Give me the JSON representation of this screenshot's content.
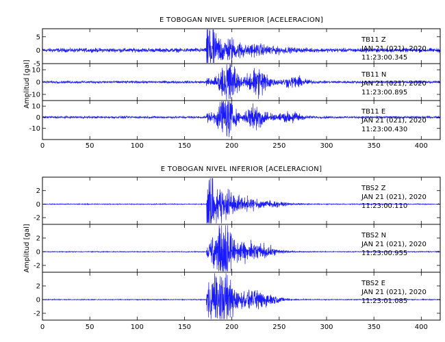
{
  "chart_data": [
    {
      "type": "line",
      "title": "E TOBOGAN NIVEL SUPERIOR [ACELERACION]",
      "xlabel": "",
      "ylabel": "Amplitud [gal]",
      "xlim": [
        0,
        420
      ],
      "x_ticks": [
        0,
        50,
        100,
        150,
        200,
        250,
        300,
        350,
        400
      ],
      "grid": false,
      "series": [
        {
          "annotation": [
            "TB11   Z",
            "JAN 21 (021), 2020",
            "11:23:00.345"
          ],
          "color": "#1a1aff",
          "ylim": [
            -5,
            8
          ],
          "y_ticks": [
            -5,
            0,
            5
          ],
          "onset": 173,
          "noise": 0.6,
          "packets": [
            {
              "center": 176,
              "amp": 7.0,
              "width": 6
            },
            {
              "center": 190,
              "amp": 2.5,
              "width": 18
            },
            {
              "center": 220,
              "amp": 1.2,
              "width": 35
            }
          ]
        },
        {
          "annotation": [
            "TB11   N",
            "JAN 21 (021), 2020",
            "11:23:00.895"
          ],
          "color": "#1a1aff",
          "ylim": [
            -15,
            15
          ],
          "y_ticks": [
            -10,
            0,
            10
          ],
          "onset": 173,
          "noise": 0.8,
          "packets": [
            {
              "center": 175,
              "amp": 2.0,
              "width": 4
            },
            {
              "center": 196,
              "amp": 14.0,
              "width": 10
            },
            {
              "center": 228,
              "amp": 9.0,
              "width": 12
            },
            {
              "center": 265,
              "amp": 3.0,
              "width": 14
            }
          ]
        },
        {
          "annotation": [
            "TB11   E",
            "JAN 21 (021), 2020",
            "11:23:00.430"
          ],
          "color": "#1a1aff",
          "ylim": [
            -20,
            15
          ],
          "y_ticks": [
            -10,
            0,
            10
          ],
          "onset": 173,
          "noise": 0.8,
          "packets": [
            {
              "center": 176,
              "amp": 3.0,
              "width": 4
            },
            {
              "center": 194,
              "amp": 18.0,
              "width": 9
            },
            {
              "center": 226,
              "amp": 9.0,
              "width": 12
            },
            {
              "center": 262,
              "amp": 3.0,
              "width": 14
            }
          ]
        }
      ]
    },
    {
      "type": "line",
      "title": "E TOBOGAN NIVEL INFERIOR [ACELERACION]",
      "xlabel": "",
      "ylabel": "Amplitud [gal]",
      "xlim": [
        0,
        420
      ],
      "x_ticks": [
        0,
        50,
        100,
        150,
        200,
        250,
        300,
        350,
        400
      ],
      "grid": false,
      "series": [
        {
          "annotation": [
            "TBS2   Z",
            "JAN 21 (021), 2020",
            "11:23:00.110"
          ],
          "color": "#1a1aff",
          "ylim": [
            -3,
            4
          ],
          "y_ticks": [
            -2,
            0,
            2
          ],
          "onset": 173,
          "noise": 0.05,
          "packets": [
            {
              "center": 176,
              "amp": 3.5,
              "width": 5
            },
            {
              "center": 190,
              "amp": 1.5,
              "width": 14
            },
            {
              "center": 215,
              "amp": 0.6,
              "width": 35
            }
          ]
        },
        {
          "annotation": [
            "TBS2   N",
            "JAN 21 (021), 2020",
            "11:23:00.955"
          ],
          "color": "#1a1aff",
          "ylim": [
            -3,
            4
          ],
          "y_ticks": [
            -2,
            0,
            2
          ],
          "onset": 173,
          "noise": 0.05,
          "packets": [
            {
              "center": 180,
              "amp": 1.5,
              "width": 6
            },
            {
              "center": 193,
              "amp": 3.0,
              "width": 10
            },
            {
              "center": 220,
              "amp": 1.0,
              "width": 25
            }
          ]
        },
        {
          "annotation": [
            "TBS2   E",
            "JAN 21 (021), 2020",
            "11:23:01.085"
          ],
          "color": "#1a1aff",
          "ylim": [
            -3,
            4
          ],
          "y_ticks": [
            -2,
            0,
            2
          ],
          "onset": 173,
          "noise": 0.05,
          "packets": [
            {
              "center": 178,
              "amp": 2.0,
              "width": 6
            },
            {
              "center": 192,
              "amp": 3.5,
              "width": 10
            },
            {
              "center": 222,
              "amp": 1.0,
              "width": 25
            }
          ]
        }
      ]
    }
  ]
}
